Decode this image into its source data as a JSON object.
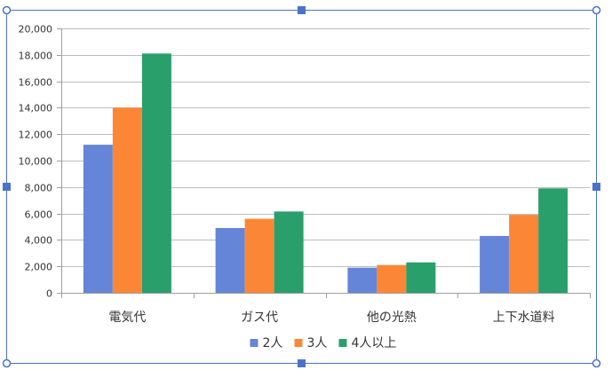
{
  "colors": {
    "frame": "#4d6fbf",
    "handle": "#4a72c9",
    "grid": "#bdbdbd",
    "axis": "#9e9e9e"
  },
  "chart_data": {
    "type": "bar",
    "title": "",
    "xlabel": "",
    "ylabel": "",
    "categories": [
      "電気代",
      "ガス代",
      "他の光熱",
      "上下水道料"
    ],
    "series": [
      {
        "name": "2人",
        "color": "#6585d8",
        "values": [
          11200,
          4900,
          1900,
          4300
        ]
      },
      {
        "name": "3人",
        "color": "#fb8736",
        "values": [
          14000,
          5600,
          2100,
          5900
        ]
      },
      {
        "name": "4人以上",
        "color": "#299f6c",
        "values": [
          18100,
          6150,
          2300,
          7900
        ]
      }
    ],
    "ylim": [
      0,
      20000
    ],
    "yticks": [
      0,
      2000,
      4000,
      6000,
      8000,
      10000,
      12000,
      14000,
      16000,
      18000,
      20000
    ],
    "ytick_labels": [
      "0",
      "2,000",
      "4,000",
      "6,000",
      "8,000",
      "10,000",
      "12,000",
      "14,000",
      "16,000",
      "18,000",
      "20,000"
    ],
    "grid": true,
    "legend": {
      "position": "bottom",
      "labels": [
        "2人",
        "3人",
        "4人以上"
      ]
    }
  }
}
